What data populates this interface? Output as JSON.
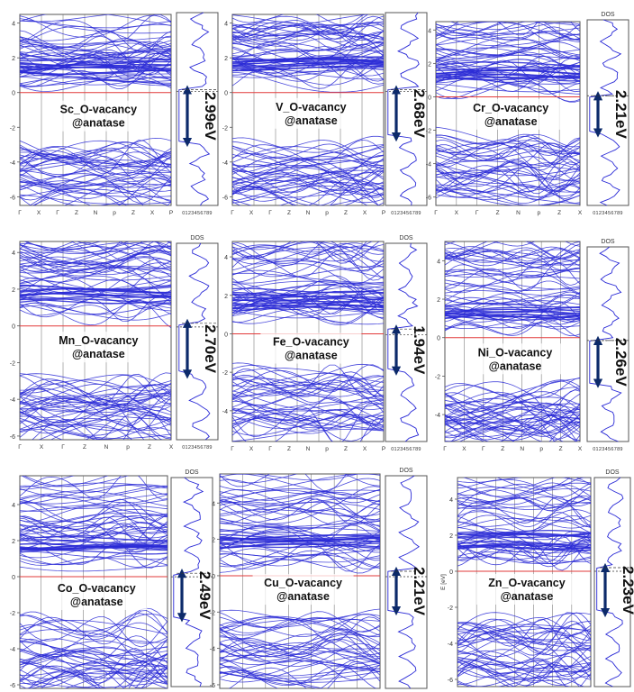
{
  "figure": {
    "dos_label": "DOS",
    "energy_axis_label": "E [eV]",
    "colors": {
      "band": "#2a2ad6",
      "fermi": "#e23a3a",
      "arrow": "#0c2a6a",
      "frame": "#555555",
      "dos_line": "#2a2ad6"
    }
  },
  "chart_data": [
    {
      "type": "line",
      "panel": "Sc",
      "label_line1": "Sc_O-vacancy",
      "label_line2": "@anatase",
      "gap": "2.99eV",
      "yticks": [
        "4",
        "2",
        "0",
        "-2",
        "-4",
        "-6"
      ],
      "ylim": [
        -6.5,
        4.5
      ],
      "kpoints": [
        "Γ",
        "X",
        "Γ",
        "Z",
        "N",
        "p",
        "Z",
        "X",
        "P"
      ],
      "dos_ticks": "0123456789",
      "gap_range_ev": [
        -2.9,
        0.1
      ],
      "fermi_ev": 0,
      "dos_title": ""
    },
    {
      "type": "line",
      "panel": "V",
      "label_line1": "V_O-vacancy",
      "label_line2": "@anatase",
      "gap": "2.68eV",
      "yticks": [
        "4",
        "2",
        "0",
        "-2",
        "-4",
        "-6"
      ],
      "ylim": [
        -6.5,
        4.5
      ],
      "kpoints": [
        "Γ",
        "X",
        "Γ",
        "Z",
        "N",
        "p",
        "Z",
        "X",
        "P"
      ],
      "dos_ticks": "0123456789",
      "gap_range_ev": [
        -2.6,
        0.1
      ],
      "fermi_ev": 0,
      "dos_title": ""
    },
    {
      "type": "line",
      "panel": "Cr",
      "label_line1": "Cr_O-vacancy",
      "label_line2": "@anatase",
      "gap": "2.21eV",
      "yticks": [
        "4",
        "2",
        "0",
        "-2",
        "-4",
        "-6"
      ],
      "ylim": [
        -6.5,
        4.5
      ],
      "kpoints": [
        "Γ",
        "X",
        "Γ",
        "Z",
        "N",
        "p",
        "Z",
        "X"
      ],
      "dos_ticks": "0123456789",
      "gap_range_ev": [
        -2.2,
        0.0
      ],
      "fermi_ev": 0,
      "dos_title": "DOS"
    },
    {
      "type": "line",
      "panel": "Mn",
      "label_line1": "Mn_O-vacancy",
      "label_line2": "@anatase",
      "gap": "2.70eV",
      "yticks": [
        "4",
        "2",
        "0",
        "-2",
        "-4",
        "-6"
      ],
      "ylim": [
        -6.2,
        4.6
      ],
      "kpoints": [
        "Γ",
        "X",
        "Γ",
        "Z",
        "N",
        "p",
        "Z",
        "X"
      ],
      "dos_ticks": "0123456789",
      "gap_range_ev": [
        -2.6,
        0.2
      ],
      "fermi_ev": 0,
      "dos_title": "DOS"
    },
    {
      "type": "line",
      "panel": "Fe",
      "label_line1": "Fe_O-vacancy",
      "label_line2": "@anatase",
      "gap": "1.94eV",
      "yticks": [
        "4",
        "2",
        "0",
        "-2",
        "-4"
      ],
      "ylim": [
        -5.6,
        4.8
      ],
      "kpoints": [
        "Γ",
        "X",
        "Γ",
        "Z",
        "N",
        "p",
        "Z",
        "X",
        "P"
      ],
      "dos_ticks": "0123456789",
      "gap_range_ev": [
        -1.9,
        0.3
      ],
      "fermi_ev": 0,
      "dos_title": "DOS"
    },
    {
      "type": "line",
      "panel": "Ni",
      "label_line1": "Ni_O-vacancy",
      "label_line2": "@anatase",
      "gap": "2.26eV",
      "yticks": [
        "4",
        "2",
        "0",
        "-2",
        "-4"
      ],
      "ylim": [
        -5.4,
        5.0
      ],
      "kpoints": [
        "Γ",
        "X",
        "Γ",
        "Z",
        "N",
        "p",
        "Z",
        "X"
      ],
      "dos_ticks": "0123456789",
      "gap_range_ev": [
        -2.3,
        0.0
      ],
      "fermi_ev": 0,
      "dos_title": "DOS"
    },
    {
      "type": "line",
      "panel": "Co",
      "label_line1": "Co_O-vacancy",
      "label_line2": "@anatase",
      "gap": "2.49eV",
      "yticks": [
        "4",
        "2",
        "0",
        "-2",
        "-4",
        "-6"
      ],
      "ylim": [
        -6.2,
        5.6
      ],
      "kpoints": [],
      "dos_ticks": "",
      "gap_range_ev": [
        -2.3,
        0.2
      ],
      "fermi_ev": 0,
      "dos_title": "DOS"
    },
    {
      "type": "line",
      "panel": "Cu",
      "label_line1": "Cu_O-vacancy",
      "label_line2": "@anatase",
      "gap": "2.21eV",
      "yticks": [
        "4",
        "2",
        "0",
        "-2",
        "-4",
        "-6"
      ],
      "ylim": [
        -6.2,
        5.6
      ],
      "kpoints": [],
      "dos_ticks": "",
      "gap_range_ev": [
        -1.9,
        0.3
      ],
      "fermi_ev": 0,
      "dos_title": "DOS"
    },
    {
      "type": "line",
      "panel": "Zn",
      "label_line1": "Zn_O-vacancy",
      "label_line2": "@anatase",
      "gap": "2.23eV",
      "yticks": [
        "4",
        "2",
        "0",
        "-2",
        "-4",
        "-6"
      ],
      "ylim": [
        -6.4,
        5.2
      ],
      "kpoints": [],
      "dos_ticks": "",
      "gap_range_ev": [
        -2.3,
        0.2
      ],
      "fermi_ev": 0,
      "dos_title": "DOS"
    }
  ]
}
